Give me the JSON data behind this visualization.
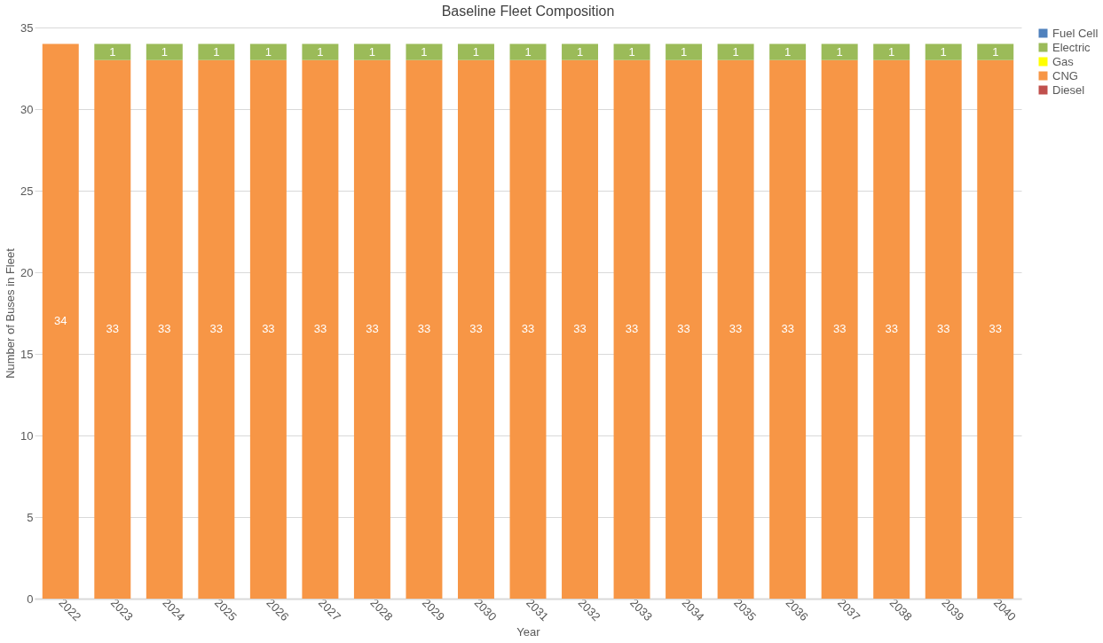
{
  "chart_data": {
    "type": "bar",
    "title": "Baseline Fleet Composition",
    "xlabel": "Year",
    "ylabel": "Number of Buses in Fleet",
    "categories": [
      "2022",
      "2023",
      "2024",
      "2025",
      "2026",
      "2027",
      "2028",
      "2029",
      "2030",
      "2031",
      "2032",
      "2033",
      "2034",
      "2035",
      "2036",
      "2037",
      "2038",
      "2039",
      "2040"
    ],
    "stacked": true,
    "legend": "right",
    "grid": "y",
    "ylim": [
      0,
      35
    ],
    "yticks": [
      0,
      5,
      10,
      15,
      20,
      25,
      30,
      35
    ],
    "series": [
      {
        "name": "Diesel",
        "color": "#c0504d",
        "values": [
          0,
          0,
          0,
          0,
          0,
          0,
          0,
          0,
          0,
          0,
          0,
          0,
          0,
          0,
          0,
          0,
          0,
          0,
          0
        ]
      },
      {
        "name": "CNG",
        "color": "#f79646",
        "values": [
          34,
          33,
          33,
          33,
          33,
          33,
          33,
          33,
          33,
          33,
          33,
          33,
          33,
          33,
          33,
          33,
          33,
          33,
          33
        ],
        "value_labels": [
          "34",
          "33",
          "33",
          "33",
          "33",
          "33",
          "33",
          "33",
          "33",
          "33",
          "33",
          "33",
          "33",
          "33",
          "33",
          "33",
          "33",
          "33",
          "33"
        ]
      },
      {
        "name": "Gas",
        "color": "#ffff00",
        "values": [
          0,
          0,
          0,
          0,
          0,
          0,
          0,
          0,
          0,
          0,
          0,
          0,
          0,
          0,
          0,
          0,
          0,
          0,
          0
        ]
      },
      {
        "name": "Electric",
        "color": "#9bbb59",
        "values": [
          0,
          1,
          1,
          1,
          1,
          1,
          1,
          1,
          1,
          1,
          1,
          1,
          1,
          1,
          1,
          1,
          1,
          1,
          1
        ],
        "value_labels": [
          null,
          "1",
          "1",
          "1",
          "1",
          "1",
          "1",
          "1",
          "1",
          "1",
          "1",
          "1",
          "1",
          "1",
          "1",
          "1",
          "1",
          "1",
          "1"
        ]
      },
      {
        "name": "Fuel Cell",
        "color": "#4f81bd",
        "values": [
          0,
          0,
          0,
          0,
          0,
          0,
          0,
          0,
          0,
          0,
          0,
          0,
          0,
          0,
          0,
          0,
          0,
          0,
          0
        ]
      }
    ]
  }
}
